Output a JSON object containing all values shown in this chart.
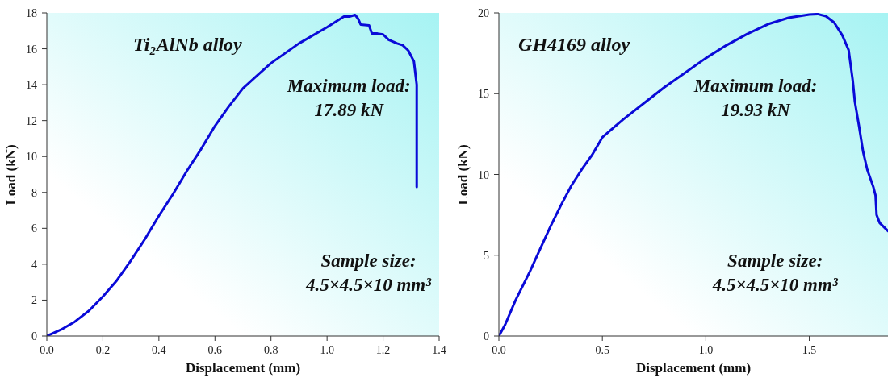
{
  "chart_data": [
    {
      "type": "line",
      "xlabel": "Displacement (mm)",
      "ylabel": "Load (kN)",
      "annotations": [
        "Ti₂AlNb alloy",
        "Maximum load:\n17.89 kN",
        "Sample size:\n4.5×4.5×10 mm³"
      ],
      "x": [
        0,
        0.05,
        0.1,
        0.15,
        0.2,
        0.25,
        0.3,
        0.35,
        0.4,
        0.45,
        0.5,
        0.55,
        0.6,
        0.65,
        0.7,
        0.75,
        0.8,
        0.9,
        1.0,
        1.05,
        1.06,
        1.08,
        1.1,
        1.11,
        1.12,
        1.15,
        1.16,
        1.18,
        1.2,
        1.22,
        1.25,
        1.27,
        1.29,
        1.31,
        1.32,
        1.32,
        1.32
      ],
      "series": [
        {
          "color": "#0a0ad8",
          "values": [
            0,
            0.35,
            0.8,
            1.4,
            2.2,
            3.1,
            4.2,
            5.4,
            6.7,
            7.9,
            9.2,
            10.4,
            11.7,
            12.8,
            13.8,
            14.5,
            15.2,
            16.3,
            17.2,
            17.7,
            17.8,
            17.8,
            17.89,
            17.7,
            17.35,
            17.3,
            16.85,
            16.85,
            16.8,
            16.5,
            16.3,
            16.2,
            15.9,
            15.3,
            14,
            11,
            8.3
          ]
        }
      ],
      "xlim": [
        0,
        1.4
      ],
      "xticks": [
        {
          "value": 0,
          "label": "0.0"
        },
        {
          "value": 0.2,
          "label": "0.2"
        },
        {
          "value": 0.4,
          "label": "0.4"
        },
        {
          "value": 0.6,
          "label": "0.6"
        },
        {
          "value": 0.8,
          "label": "0.8"
        },
        {
          "value": 1,
          "label": "1.0"
        },
        {
          "value": 1.2,
          "label": "1.2"
        },
        {
          "value": 1.4,
          "label": "1.4"
        }
      ],
      "ylim": [
        0,
        18
      ],
      "yticks": [
        0,
        2,
        4,
        6,
        8,
        10,
        12,
        14,
        16,
        18
      ],
      "marker": "none",
      "line_style": "solid",
      "legend": false,
      "grid": false
    },
    {
      "type": "line",
      "xlabel": "Displacement (mm)",
      "ylabel": "Load (kN)",
      "annotations": [
        "GH4169 alloy",
        "Maximum load:\n19.93 kN",
        "Sample size:\n4.5×4.5×10 mm³"
      ],
      "x": [
        0,
        0.03,
        0.08,
        0.15,
        0.2,
        0.25,
        0.3,
        0.35,
        0.4,
        0.45,
        0.5,
        0.6,
        0.7,
        0.8,
        0.9,
        1.0,
        1.1,
        1.2,
        1.3,
        1.4,
        1.5,
        1.54,
        1.58,
        1.62,
        1.66,
        1.69,
        1.71,
        1.72,
        1.74,
        1.76,
        1.78,
        1.81,
        1.82,
        1.825,
        1.84,
        1.88
      ],
      "series": [
        {
          "color": "#0a0ad8",
          "values": [
            0,
            0.7,
            2.2,
            4,
            5.4,
            6.8,
            8.1,
            9.3,
            10.3,
            11.2,
            12.3,
            13.4,
            14.4,
            15.4,
            16.3,
            17.2,
            18,
            18.7,
            19.3,
            19.7,
            19.9,
            19.93,
            19.8,
            19.4,
            18.6,
            17.7,
            15.8,
            14.5,
            13,
            11.4,
            10.3,
            9.2,
            8.7,
            7.5,
            7,
            6.5
          ]
        }
      ],
      "xlim": [
        0,
        1.88
      ],
      "xticks": [
        {
          "value": 0,
          "label": "0.0"
        },
        {
          "value": 0.5,
          "label": "0.5"
        },
        {
          "value": 1,
          "label": "1.0"
        },
        {
          "value": 1.5,
          "label": "1.5"
        }
      ],
      "ylim": [
        0,
        20
      ],
      "yticks": [
        0,
        5,
        10,
        15,
        20
      ],
      "marker": "none",
      "line_style": "solid",
      "legend": false,
      "grid": false
    }
  ]
}
